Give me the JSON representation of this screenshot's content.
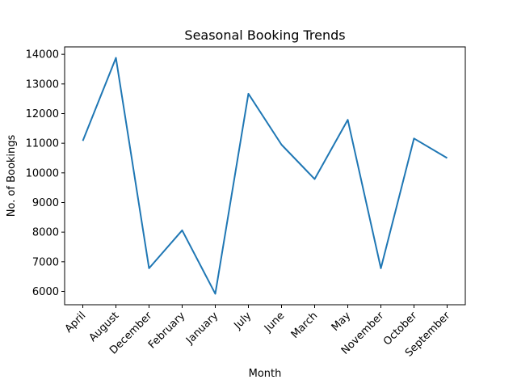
{
  "chart_data": {
    "type": "line",
    "title": "Seasonal Booking Trends",
    "xlabel": "Month",
    "ylabel": "No. of Bookings",
    "categories": [
      "April",
      "August",
      "December",
      "February",
      "January",
      "July",
      "June",
      "March",
      "May",
      "November",
      "October",
      "September"
    ],
    "series": [
      {
        "values": [
          11080,
          13880,
          6780,
          8060,
          5920,
          12670,
          10950,
          9790,
          11790,
          6780,
          11160,
          10500
        ],
        "color": "#1f77b4"
      }
    ],
    "ylim": [
      5550,
      14250
    ],
    "yticks": [
      6000,
      7000,
      8000,
      9000,
      10000,
      11000,
      12000,
      13000,
      14000
    ],
    "grid": false,
    "legend": "none"
  }
}
